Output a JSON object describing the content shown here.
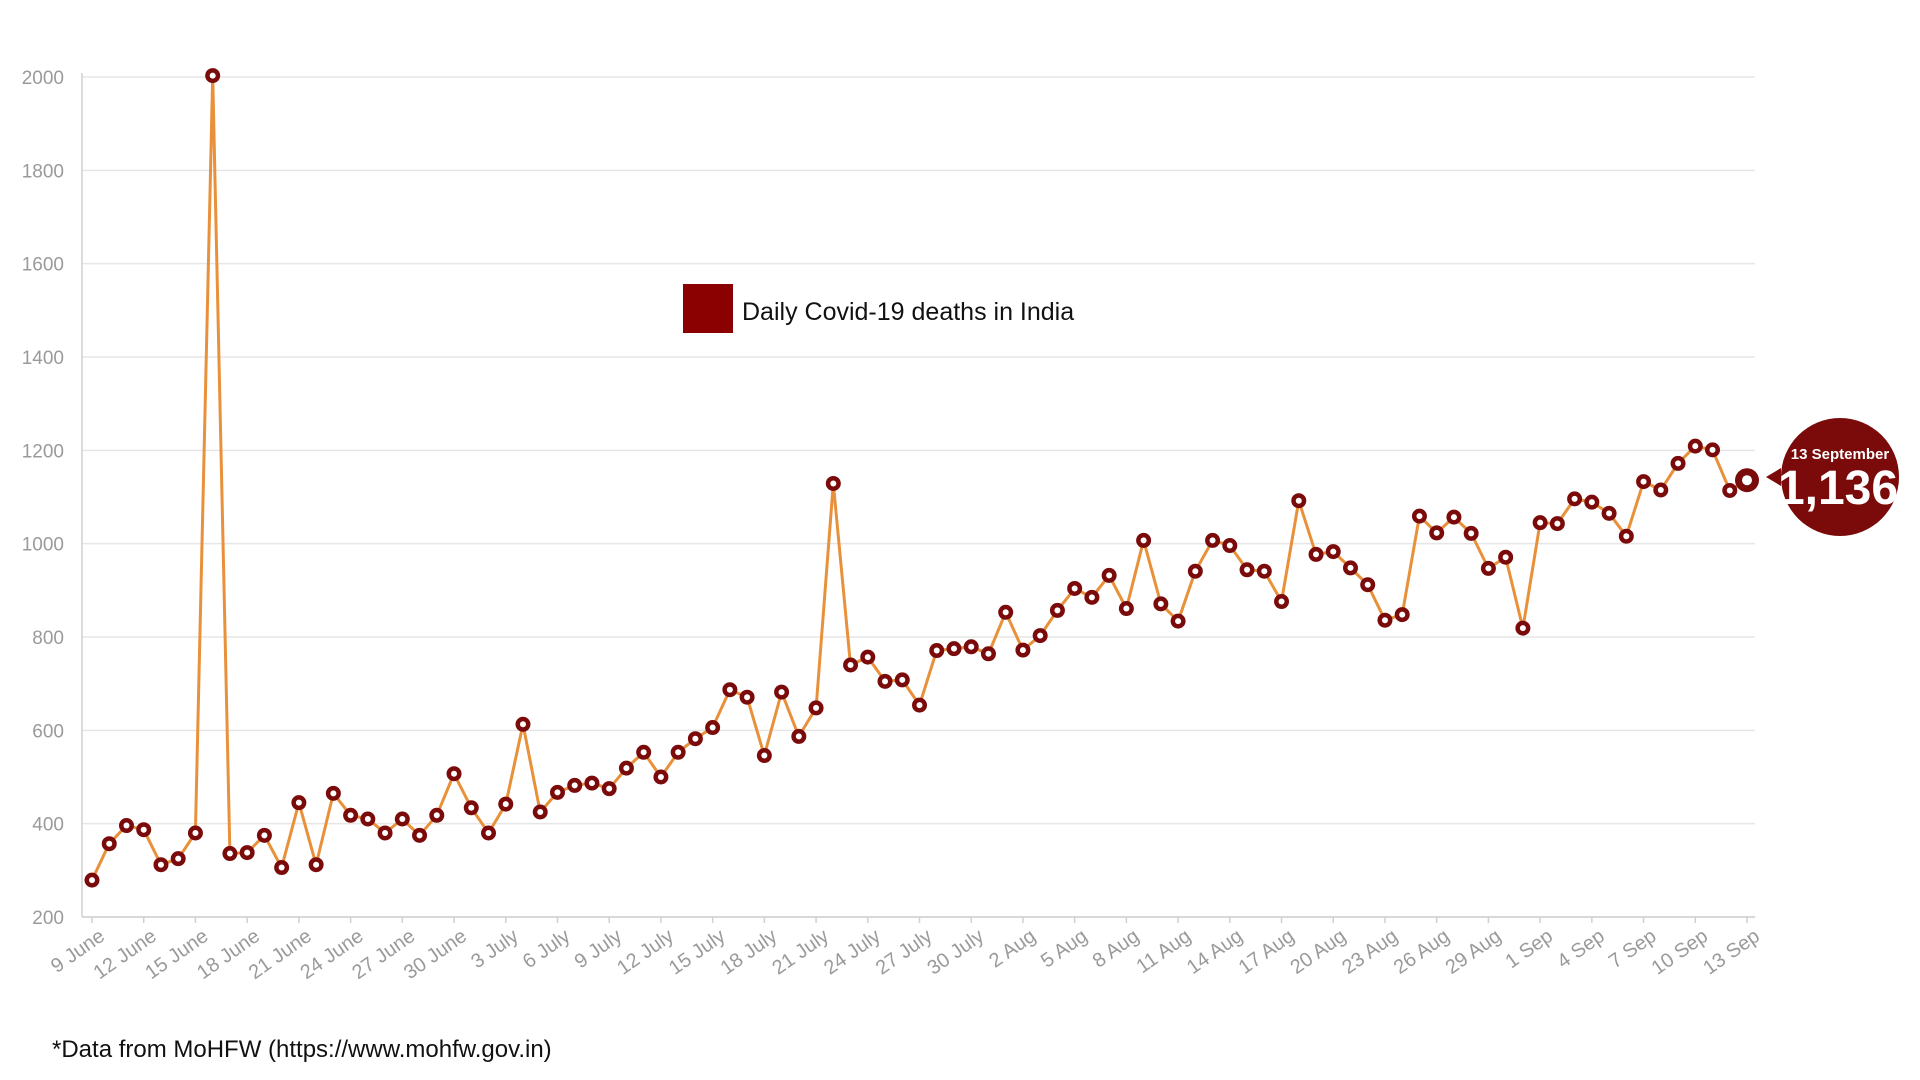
{
  "chart_data": {
    "type": "line",
    "title": "",
    "xlabel": "",
    "ylabel": "",
    "ylim": [
      200,
      2000
    ],
    "y_ticks": [
      200,
      400,
      600,
      800,
      1000,
      1200,
      1400,
      1600,
      1800,
      2000
    ],
    "grid": true,
    "legend": "Daily Covid-19 deaths in India",
    "legend_position": "top-center",
    "x_tick_labels": [
      "9 June",
      "12 June",
      "15 June",
      "18 June",
      "21 June",
      "24 June",
      "27 June",
      "30 June",
      "3 July",
      "6 July",
      "9 July",
      "12 July",
      "15 July",
      "18 July",
      "21 July",
      "24 July",
      "27 July",
      "30 July",
      "2 Aug",
      "5 Aug",
      "8 Aug",
      "11 Aug",
      "14 Aug",
      "17 Aug",
      "20 Aug",
      "23 Aug",
      "26 Aug",
      "29 Aug",
      "1 Sep",
      "4 Sep",
      "7 Sep",
      "10 Sep",
      "13 Sep"
    ],
    "series": [
      {
        "name": "Daily Covid-19 deaths in India",
        "start_label": "9 June",
        "values": [
          279,
          357,
          396,
          387,
          312,
          325,
          380,
          2003,
          336,
          338,
          375,
          306,
          445,
          312,
          465,
          418,
          410,
          380,
          410,
          375,
          418,
          507,
          434,
          380,
          442,
          613,
          425,
          467,
          482,
          487,
          475,
          519,
          553,
          500,
          553,
          582,
          606,
          687,
          671,
          546,
          682,
          587,
          648,
          1129,
          740,
          757,
          705,
          708,
          654,
          771,
          775,
          779,
          764,
          853,
          772,
          803,
          857,
          904,
          885,
          932,
          861,
          1007,
          871,
          834,
          941,
          1007,
          996,
          944,
          941,
          876,
          1092,
          977,
          983,
          948,
          912,
          836,
          848,
          1059,
          1023,
          1057,
          1022,
          947,
          971,
          819,
          1045,
          1043,
          1096,
          1089,
          1065,
          1016,
          1133,
          1115,
          1172,
          1209,
          1201,
          1114,
          1136
        ]
      }
    ],
    "colors": {
      "line": "#e8913a",
      "marker": "#7b0b0b",
      "marker_inner": "#ffffff",
      "grid": "#e6e6e6",
      "axis_text": "#9a9a9a",
      "legend_swatch": "#8b0000",
      "callout": "#7b0b0b"
    },
    "callout": {
      "date_label": "13 September",
      "value_label": "1,136",
      "value": 1136
    }
  },
  "footer": {
    "source_note": "*Data from MoHFW (https://www.mohfw.gov.in)"
  }
}
